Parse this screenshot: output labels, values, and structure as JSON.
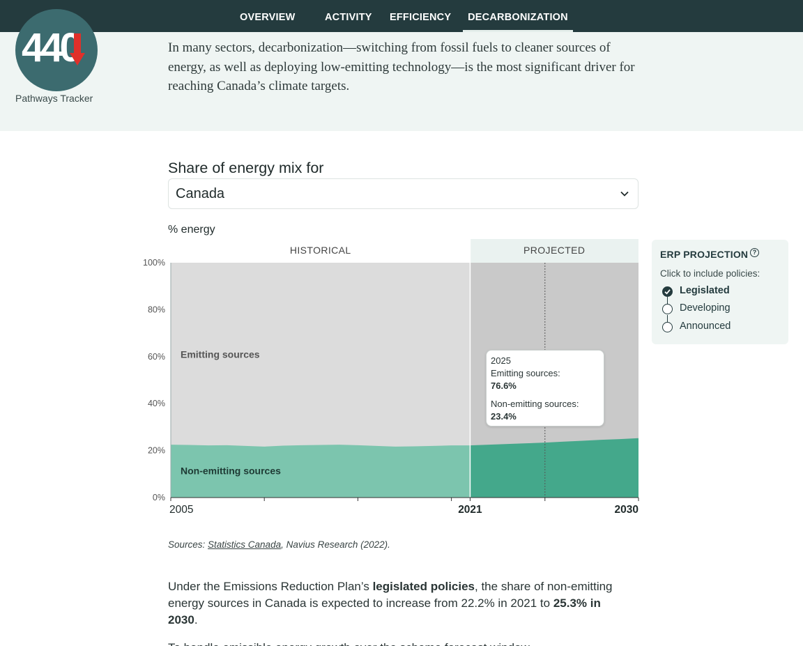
{
  "nav": {
    "items": [
      {
        "label": "OVERVIEW"
      },
      {
        "label": "ACTIVITY"
      },
      {
        "label": "EFFICIENCY"
      },
      {
        "label": "DECARBONIZATION"
      }
    ],
    "active": "DECARBONIZATION"
  },
  "logo": {
    "number": "440",
    "caption": "Pathways Tracker",
    "colors": {
      "circle": "#3c6b6f",
      "arrow": "#e0302a"
    }
  },
  "intro": {
    "text": "In many sectors, decarbonization—switching from fossil fuels to cleaner sources of energy, as well as deploying low-emitting technology—is the most significant driver for reaching Canada’s climate targets."
  },
  "chart_heading": "Share of energy mix for",
  "region_select": {
    "value": "Canada",
    "icon": "chevron-down-icon"
  },
  "policy_panel": {
    "title": "ERP PROJECTION",
    "help_icon": "help-circle-icon",
    "hint": "Click to include policies:",
    "options": [
      {
        "label": "Legislated",
        "selected": true
      },
      {
        "label": "Developing",
        "selected": false
      },
      {
        "label": "Announced",
        "selected": false
      }
    ]
  },
  "tooltip": {
    "year": "2025",
    "emitting_label": "Emitting sources:",
    "emitting_value": "76.6%",
    "nonemitting_label": "Non-emitting sources:",
    "nonemitting_value": "23.4%"
  },
  "chart_data": {
    "type": "area",
    "stacked": true,
    "title": "Share of energy mix for Canada",
    "ylabel": "% energy",
    "ylim": [
      0,
      100
    ],
    "yticks": [
      "0%",
      "20%",
      "40%",
      "60%",
      "80%",
      "100%"
    ],
    "xlim": [
      2005,
      2030
    ],
    "xtick_labels": [
      {
        "year": 2005,
        "label": "2005",
        "bold": false
      },
      {
        "year": 2021,
        "label": "2021",
        "bold": true
      },
      {
        "year": 2030,
        "label": "2030",
        "bold": true
      }
    ],
    "xtick_marks": [
      2005,
      2010,
      2015,
      2020,
      2021,
      2025,
      2030
    ],
    "historical_end": 2021,
    "highlight_year": 2025,
    "section_labels": {
      "historical": "HISTORICAL",
      "projected": "PROJECTED"
    },
    "x": [
      2005,
      2006,
      2007,
      2008,
      2009,
      2010,
      2011,
      2012,
      2013,
      2014,
      2015,
      2016,
      2017,
      2018,
      2019,
      2020,
      2021,
      2022,
      2023,
      2024,
      2025,
      2026,
      2027,
      2028,
      2029,
      2030
    ],
    "series": [
      {
        "name": "Non-emitting sources",
        "values": [
          22.5,
          22.4,
          22.2,
          22.3,
          22.0,
          21.7,
          22.1,
          22.3,
          22.4,
          22.5,
          22.3,
          22.0,
          21.7,
          21.8,
          22.0,
          22.2,
          22.2,
          22.5,
          22.8,
          23.1,
          23.4,
          23.8,
          24.2,
          24.6,
          24.9,
          25.3
        ],
        "colors": {
          "historical": "#7cc5ae",
          "projected": "#44a88b"
        },
        "label_color": "#1e3a34"
      },
      {
        "name": "Emitting sources",
        "values": [
          77.5,
          77.6,
          77.8,
          77.7,
          78.0,
          78.3,
          77.9,
          77.7,
          77.6,
          77.5,
          77.7,
          78.0,
          78.3,
          78.2,
          78.0,
          77.8,
          77.8,
          77.5,
          77.2,
          76.9,
          76.6,
          76.2,
          75.8,
          75.4,
          75.1,
          74.7
        ],
        "colors": {
          "historical": "#dcdcdc",
          "projected": "#c9c9c9"
        },
        "label_color": "#555555"
      }
    ]
  },
  "sources": {
    "prefix": "Sources: ",
    "link": "Statistics Canada",
    "rest": ", Navius Research (2022)."
  },
  "body": {
    "p1_a": "Under the Emissions Reduction Plan’s ",
    "p1_b": "legislated policies",
    "p1_c": ", the share of non-emitting energy sources in Canada is expected to increase from 22.2% in 2021 to ",
    "p1_d": "25.3% in 2030",
    "p1_e": ".",
    "p2": "To handle emissible energy growth over the scheme forecast window..."
  }
}
